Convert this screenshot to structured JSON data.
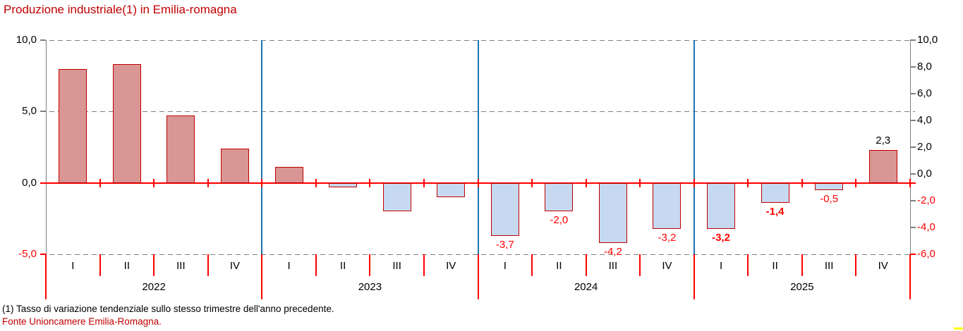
{
  "title": "Produzione industriale(1) in Emilia-romagna",
  "footnote": "(1) Tasso di variazione tendenziale sullo stesso trimestre dell'anno precedente.",
  "source": "Fonte Unioncamere Emilia-Romagna.",
  "colors": {
    "title_red": "#C00000",
    "source_red": "#C00000",
    "positive_fill": "#D99694",
    "negative_fill": "#C6D9F1",
    "bar_border": "#C00000",
    "zero_line": "#FF0000",
    "grid_gray": "#7F7F7F",
    "frame_gray": "#7F7F7F",
    "year_separator_blue": "#1B75B5",
    "label_red": "#FF0000",
    "label_black": "#000000",
    "negative_axis_red": "#FF0000",
    "yellow_mark": "#FFFF00"
  },
  "axes": {
    "left": [
      {
        "text": "10,0",
        "value": 10
      },
      {
        "text": "5,0",
        "value": 5
      },
      {
        "text": "0,0",
        "value": 0
      },
      {
        "text": "-5,0",
        "value": -5
      }
    ],
    "right": [
      {
        "text": "10,0",
        "value": 10
      },
      {
        "text": "8,0",
        "value": 8
      },
      {
        "text": "6,0",
        "value": 6
      },
      {
        "text": "4,0",
        "value": 4
      },
      {
        "text": "2,0",
        "value": 2
      },
      {
        "text": "0,0",
        "value": 0
      },
      {
        "text": "-2,0",
        "value": -2
      },
      {
        "text": "-4,0",
        "value": -4
      },
      {
        "text": "-6,0",
        "value": -6
      }
    ],
    "left_gridline_values": [
      10,
      5,
      -5
    ]
  },
  "years": [
    {
      "label": "2022",
      "quarters": [
        {
          "q": "I",
          "value": 8.0,
          "label": "",
          "bold": false
        },
        {
          "q": "II",
          "value": 8.3,
          "label": "",
          "bold": false
        },
        {
          "q": "III",
          "value": 4.7,
          "label": "",
          "bold": false
        },
        {
          "q": "IV",
          "value": 2.4,
          "label": "",
          "bold": false
        }
      ]
    },
    {
      "label": "2023",
      "quarters": [
        {
          "q": "I",
          "value": 1.1,
          "label": "",
          "bold": false
        },
        {
          "q": "II",
          "value": -0.3,
          "label": "",
          "bold": false
        },
        {
          "q": "III",
          "value": -2.0,
          "label": "",
          "bold": false
        },
        {
          "q": "IV",
          "value": -1.0,
          "label": "",
          "bold": false
        }
      ]
    },
    {
      "label": "2024",
      "quarters": [
        {
          "q": "I",
          "value": -3.7,
          "label": "-3,7",
          "bold": false
        },
        {
          "q": "II",
          "value": -2.0,
          "label": "-2,0",
          "bold": false
        },
        {
          "q": "III",
          "value": -4.2,
          "label": "-4,2",
          "bold": false
        },
        {
          "q": "IV",
          "value": -3.2,
          "label": "-3,2",
          "bold": false
        }
      ]
    },
    {
      "label": "2025",
      "quarters": [
        {
          "q": "I",
          "value": -3.2,
          "label": "-3,2",
          "bold": true
        },
        {
          "q": "II",
          "value": -1.4,
          "label": "-1,4",
          "bold": true
        },
        {
          "q": "III",
          "value": -0.5,
          "label": "-0,5",
          "bold": false
        },
        {
          "q": "IV",
          "value": 2.3,
          "label": "2,3",
          "bold": false
        }
      ]
    }
  ],
  "chart_data": {
    "type": "bar",
    "title": "Produzione industriale(1) in Emilia-romagna",
    "categories": [
      "2022 I",
      "2022 II",
      "2022 III",
      "2022 IV",
      "2023 I",
      "2023 II",
      "2023 III",
      "2023 IV",
      "2024 I",
      "2024 II",
      "2024 III",
      "2024 IV",
      "2025 I",
      "2025 II",
      "2025 III",
      "2025 IV"
    ],
    "values": [
      8.0,
      8.3,
      4.7,
      2.4,
      1.1,
      -0.3,
      -2.0,
      -1.0,
      -3.7,
      -2.0,
      -4.2,
      -3.2,
      -3.2,
      -1.4,
      -0.5,
      2.3
    ],
    "data_labels": [
      "",
      "",
      "",
      "",
      "",
      "",
      "",
      "",
      "-3,7",
      "-2,0",
      "-4,2",
      "-3,2",
      "-3,2",
      "-1,4",
      "-0,5",
      "2,3"
    ],
    "xlabel": "",
    "ylabel": "",
    "left_axis_range": [
      -5,
      10
    ],
    "left_axis_ticks": [
      10,
      5,
      0,
      -5
    ],
    "right_axis_range": [
      -6,
      10
    ],
    "right_axis_ticks": [
      10,
      8,
      6,
      4,
      2,
      0,
      -2,
      -4,
      -6
    ],
    "grid": "horizontal dashed at 10.0, 5.0, -5.0; solid red line at 0.0",
    "legend": "none",
    "positive_color": "#D99694",
    "negative_color": "#C6D9F1"
  }
}
